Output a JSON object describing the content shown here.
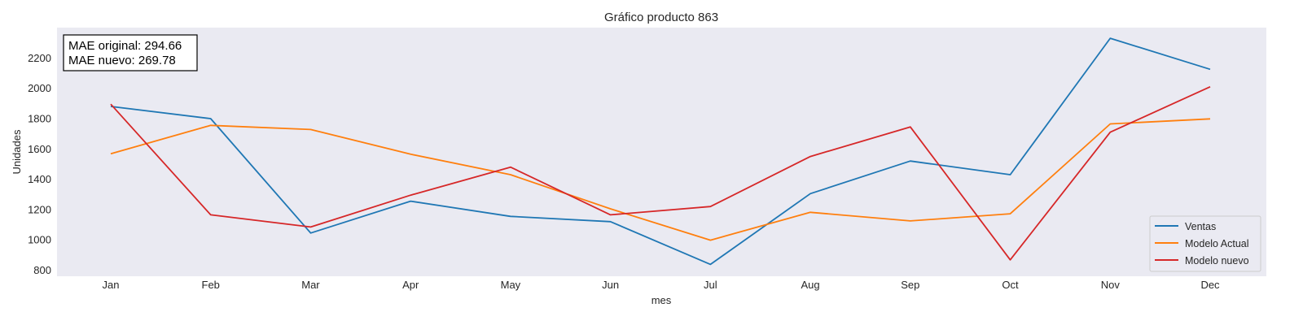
{
  "chart_data": {
    "type": "line",
    "title": "Gráfico producto 863",
    "xlabel": "mes",
    "ylabel": "Unidades",
    "categories": [
      "Jan",
      "Feb",
      "Mar",
      "Apr",
      "May",
      "Jun",
      "Jul",
      "Aug",
      "Sep",
      "Oct",
      "Nov",
      "Dec"
    ],
    "yticks": [
      800,
      1000,
      1200,
      1400,
      1600,
      1800,
      2000,
      2200
    ],
    "ylim": [
      760,
      2400
    ],
    "grid": false,
    "background": "#EAEAF2",
    "legend_position": "lower-right",
    "annotation": {
      "line1": "MAE original: 294.66",
      "line2": "MAE nuevo: 269.78"
    },
    "series": [
      {
        "name": "Ventas",
        "color": "#1f77b4",
        "values": [
          1880,
          1800,
          1045,
          1255,
          1155,
          1120,
          838,
          1305,
          1520,
          1430,
          2330,
          2125
        ]
      },
      {
        "name": "Modelo Actual",
        "color": "#ff7f0e",
        "values": [
          1568,
          1755,
          1728,
          1565,
          1430,
          1205,
          998,
          1182,
          1125,
          1172,
          1765,
          1798
        ]
      },
      {
        "name": "Modelo nuevo",
        "color": "#d62728",
        "values": [
          1895,
          1165,
          1085,
          1295,
          1480,
          1165,
          1220,
          1550,
          1745,
          868,
          1710,
          2010
        ]
      }
    ]
  }
}
